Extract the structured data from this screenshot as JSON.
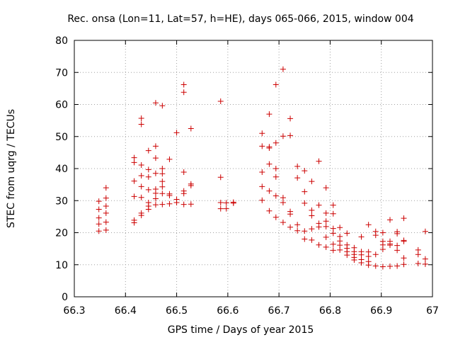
{
  "chart_data": {
    "type": "scatter",
    "title": "Rec. onsa (Lon=11, Lat=57, h=HE), days 065-066, 2015, window 004",
    "xlabel": "GPS time / Days of year 2015",
    "ylabel": "STEC from uqrg / TECUs",
    "xlim": [
      66.3,
      67.0
    ],
    "ylim": [
      0,
      80
    ],
    "x_ticks": [
      66.3,
      66.4,
      66.5,
      66.6,
      66.7,
      66.8,
      66.9,
      67.0
    ],
    "x_tick_labels": [
      "66.3",
      "66.4",
      "66.5",
      "66.6",
      "66.7",
      "66.8",
      "66.9",
      "67"
    ],
    "y_ticks": [
      0,
      10,
      20,
      30,
      40,
      50,
      60,
      70,
      80
    ],
    "y_tick_labels": [
      "0",
      "10",
      "20",
      "30",
      "40",
      "50",
      "60",
      "70",
      "80"
    ],
    "grid": true,
    "legend": "none",
    "marker": "plus",
    "color": "#cc0000",
    "points": [
      [
        66.348,
        29.8
      ],
      [
        66.348,
        27.3
      ],
      [
        66.348,
        24.6
      ],
      [
        66.348,
        22.7
      ],
      [
        66.348,
        20.5
      ],
      [
        66.362,
        34.0
      ],
      [
        66.362,
        30.8
      ],
      [
        66.362,
        28.3
      ],
      [
        66.362,
        26.1
      ],
      [
        66.362,
        23.3
      ],
      [
        66.362,
        20.8
      ],
      [
        66.417,
        43.4
      ],
      [
        66.417,
        41.9
      ],
      [
        66.417,
        36.1
      ],
      [
        66.417,
        31.3
      ],
      [
        66.417,
        23.9
      ],
      [
        66.417,
        23.1
      ],
      [
        66.431,
        55.7
      ],
      [
        66.431,
        53.8
      ],
      [
        66.431,
        41.1
      ],
      [
        66.431,
        37.8
      ],
      [
        66.431,
        34.4
      ],
      [
        66.431,
        31.0
      ],
      [
        66.431,
        26.1
      ],
      [
        66.431,
        25.4
      ],
      [
        66.445,
        45.6
      ],
      [
        66.445,
        39.7
      ],
      [
        66.445,
        37.4
      ],
      [
        66.445,
        33.4
      ],
      [
        66.445,
        29.4
      ],
      [
        66.445,
        28.3
      ],
      [
        66.445,
        27.3
      ],
      [
        66.459,
        60.5
      ],
      [
        66.459,
        47.0
      ],
      [
        66.459,
        43.3
      ],
      [
        66.459,
        38.5
      ],
      [
        66.459,
        33.6
      ],
      [
        66.459,
        32.3
      ],
      [
        66.459,
        30.6
      ],
      [
        66.459,
        28.7
      ],
      [
        66.472,
        59.6
      ],
      [
        66.472,
        40.0
      ],
      [
        66.472,
        38.4
      ],
      [
        66.472,
        36.0
      ],
      [
        66.472,
        34.3
      ],
      [
        66.472,
        32.2
      ],
      [
        66.472,
        28.8
      ],
      [
        66.486,
        42.9
      ],
      [
        66.486,
        32.1
      ],
      [
        66.486,
        31.6
      ],
      [
        66.486,
        29.0
      ],
      [
        66.5,
        51.2
      ],
      [
        66.5,
        30.4
      ],
      [
        66.5,
        29.4
      ],
      [
        66.514,
        66.2
      ],
      [
        66.514,
        63.8
      ],
      [
        66.514,
        38.9
      ],
      [
        66.514,
        33.0
      ],
      [
        66.514,
        32.2
      ],
      [
        66.514,
        28.8
      ],
      [
        66.528,
        52.5
      ],
      [
        66.528,
        35.2
      ],
      [
        66.528,
        34.7
      ],
      [
        66.528,
        28.9
      ],
      [
        66.586,
        61.0
      ],
      [
        66.586,
        37.3
      ],
      [
        66.586,
        29.4
      ],
      [
        66.586,
        27.5
      ],
      [
        66.597,
        29.3
      ],
      [
        66.597,
        27.5
      ],
      [
        66.611,
        29.5
      ],
      [
        66.611,
        29.2
      ],
      [
        66.667,
        51.0
      ],
      [
        66.667,
        47.0
      ],
      [
        66.667,
        38.9
      ],
      [
        66.667,
        34.4
      ],
      [
        66.667,
        30.1
      ],
      [
        66.681,
        57.0
      ],
      [
        66.681,
        46.8
      ],
      [
        66.681,
        46.4
      ],
      [
        66.681,
        41.4
      ],
      [
        66.681,
        33.0
      ],
      [
        66.681,
        26.8
      ],
      [
        66.694,
        66.2
      ],
      [
        66.694,
        48.0
      ],
      [
        66.694,
        40.0
      ],
      [
        66.694,
        37.4
      ],
      [
        66.694,
        31.5
      ],
      [
        66.694,
        24.8
      ],
      [
        66.708,
        71.0
      ],
      [
        66.708,
        50.1
      ],
      [
        66.708,
        30.9
      ],
      [
        66.708,
        29.4
      ],
      [
        66.708,
        23.2
      ],
      [
        66.722,
        55.6
      ],
      [
        66.722,
        50.3
      ],
      [
        66.722,
        26.6
      ],
      [
        66.722,
        25.8
      ],
      [
        66.722,
        21.7
      ],
      [
        66.736,
        40.7
      ],
      [
        66.736,
        37.1
      ],
      [
        66.736,
        22.5
      ],
      [
        66.736,
        20.6
      ],
      [
        66.75,
        39.3
      ],
      [
        66.75,
        32.8
      ],
      [
        66.75,
        29.2
      ],
      [
        66.75,
        20.5
      ],
      [
        66.75,
        18.0
      ],
      [
        66.764,
        36.0
      ],
      [
        66.764,
        27.0
      ],
      [
        66.764,
        25.3
      ],
      [
        66.764,
        21.2
      ],
      [
        66.764,
        17.7
      ],
      [
        66.778,
        42.3
      ],
      [
        66.778,
        28.6
      ],
      [
        66.778,
        22.9
      ],
      [
        66.778,
        21.8
      ],
      [
        66.778,
        16.2
      ],
      [
        66.792,
        34.0
      ],
      [
        66.792,
        26.1
      ],
      [
        66.792,
        23.6
      ],
      [
        66.792,
        21.9
      ],
      [
        66.792,
        18.6
      ],
      [
        66.792,
        15.5
      ],
      [
        66.806,
        28.6
      ],
      [
        66.806,
        25.9
      ],
      [
        66.806,
        21.3
      ],
      [
        66.806,
        19.8
      ],
      [
        66.806,
        16.4
      ],
      [
        66.806,
        14.5
      ],
      [
        66.819,
        21.6
      ],
      [
        66.819,
        18.8
      ],
      [
        66.819,
        17.4
      ],
      [
        66.819,
        16.1
      ],
      [
        66.819,
        14.6
      ],
      [
        66.833,
        19.8
      ],
      [
        66.833,
        16.2
      ],
      [
        66.833,
        15.1
      ],
      [
        66.833,
        14.1
      ],
      [
        66.833,
        13.0
      ],
      [
        66.847,
        15.3
      ],
      [
        66.847,
        14.1
      ],
      [
        66.847,
        13.2
      ],
      [
        66.847,
        12.3
      ],
      [
        66.847,
        11.5
      ],
      [
        66.861,
        18.7
      ],
      [
        66.861,
        14.1
      ],
      [
        66.861,
        13.1
      ],
      [
        66.861,
        11.6
      ],
      [
        66.861,
        10.6
      ],
      [
        66.875,
        22.5
      ],
      [
        66.875,
        14.0
      ],
      [
        66.875,
        12.6
      ],
      [
        66.875,
        11.0
      ],
      [
        66.875,
        9.9
      ],
      [
        66.889,
        20.4
      ],
      [
        66.889,
        19.2
      ],
      [
        66.889,
        13.2
      ],
      [
        66.889,
        9.6
      ],
      [
        66.903,
        20.0
      ],
      [
        66.903,
        17.3
      ],
      [
        66.903,
        16.2
      ],
      [
        66.903,
        14.8
      ],
      [
        66.903,
        9.4
      ],
      [
        66.917,
        24.0
      ],
      [
        66.917,
        17.3
      ],
      [
        66.917,
        16.5
      ],
      [
        66.917,
        16.1
      ],
      [
        66.917,
        9.5
      ],
      [
        66.931,
        20.3
      ],
      [
        66.931,
        19.7
      ],
      [
        66.931,
        16.0
      ],
      [
        66.931,
        14.5
      ],
      [
        66.931,
        9.6
      ],
      [
        66.944,
        24.5
      ],
      [
        66.944,
        17.6
      ],
      [
        66.944,
        17.3
      ],
      [
        66.944,
        12.1
      ],
      [
        66.944,
        10.1
      ],
      [
        66.972,
        14.6
      ],
      [
        66.972,
        13.2
      ],
      [
        66.972,
        10.4
      ],
      [
        66.986,
        20.4
      ],
      [
        66.986,
        11.8
      ],
      [
        66.986,
        10.2
      ]
    ]
  }
}
